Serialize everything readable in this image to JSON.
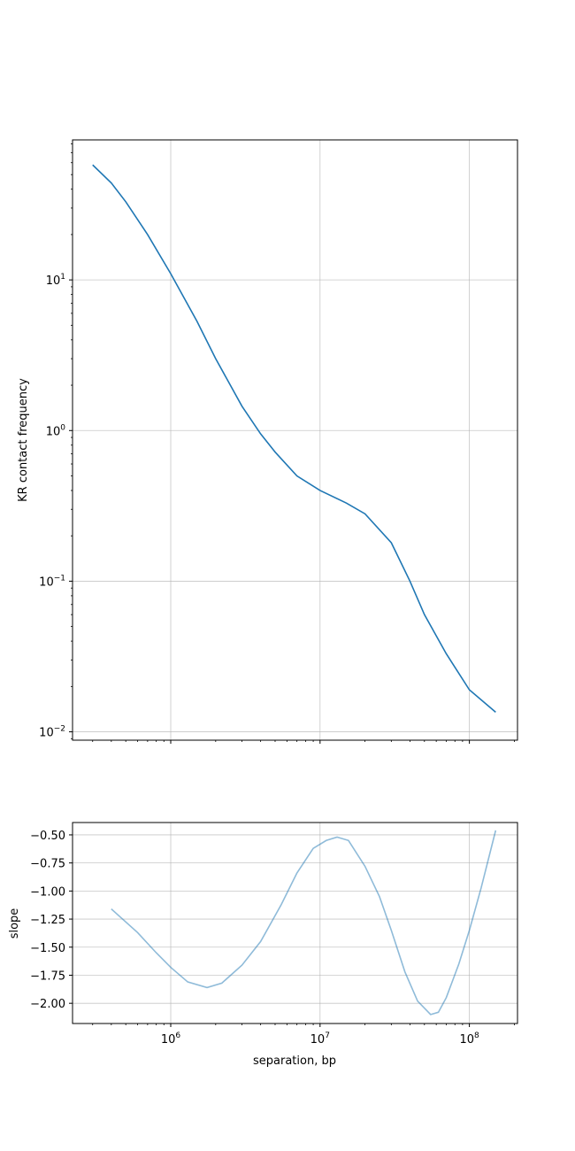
{
  "chart_data": [
    {
      "type": "line",
      "xscale": "log",
      "yscale": "log",
      "xlim": [
        220000,
        210000000
      ],
      "ylim": [
        0.0088,
        85
      ],
      "xlabel": "",
      "ylabel": "KR contact frequency",
      "yticks": [
        {
          "value": 10,
          "mantissa": "10",
          "exp": "1"
        },
        {
          "value": 1,
          "mantissa": "10",
          "exp": "0"
        },
        {
          "value": 0.1,
          "mantissa": "10",
          "exp": "−1"
        },
        {
          "value": 0.01,
          "mantissa": "10",
          "exp": "−2"
        }
      ],
      "xgrid": [
        1000000,
        10000000,
        100000000
      ],
      "grid": true,
      "color": "#1f77b4",
      "series": [
        {
          "x": [
            300000,
            400000,
            500000,
            700000,
            1000000,
            1500000,
            2000000,
            3000000,
            4000000,
            5000000,
            7000000,
            10000000,
            15000000,
            20000000,
            30000000,
            40000000,
            50000000,
            70000000,
            100000000,
            150000000
          ],
          "y": [
            58,
            44,
            33,
            20,
            11,
            5.3,
            3.0,
            1.45,
            0.95,
            0.72,
            0.5,
            0.4,
            0.33,
            0.28,
            0.18,
            0.1,
            0.06,
            0.033,
            0.019,
            0.0135
          ]
        }
      ]
    },
    {
      "type": "line",
      "xscale": "log",
      "yscale": "linear",
      "xlim": [
        220000,
        210000000
      ],
      "ylim": [
        -2.18,
        -0.39
      ],
      "xlabel": "separation, bp",
      "ylabel": "slope",
      "yticks": [
        {
          "value": -0.5,
          "label": "−0.50"
        },
        {
          "value": -0.75,
          "label": "−0.75"
        },
        {
          "value": -1.0,
          "label": "−1.00"
        },
        {
          "value": -1.25,
          "label": "−1.25"
        },
        {
          "value": -1.5,
          "label": "−1.50"
        },
        {
          "value": -1.75,
          "label": "−1.75"
        },
        {
          "value": -2.0,
          "label": "−2.00"
        }
      ],
      "xticks": [
        {
          "value": 1000000,
          "mantissa": "10",
          "exp": "6"
        },
        {
          "value": 10000000,
          "mantissa": "10",
          "exp": "7"
        },
        {
          "value": 100000000,
          "mantissa": "10",
          "exp": "8"
        }
      ],
      "grid": true,
      "color": "#1f77b4",
      "alpha": 0.5,
      "series": [
        {
          "x": [
            400000,
            600000,
            800000,
            1000000,
            1300000,
            1750000,
            2200000,
            3000000,
            4000000,
            5500000,
            7000000,
            9000000,
            11000000,
            13000000,
            15500000,
            20000000,
            25000000,
            30000000,
            37000000,
            45000000,
            55000000,
            62000000,
            70000000,
            85000000,
            100000000,
            120000000,
            150000000
          ],
          "y": [
            -1.16,
            -1.37,
            -1.55,
            -1.68,
            -1.81,
            -1.86,
            -1.82,
            -1.66,
            -1.45,
            -1.12,
            -0.84,
            -0.62,
            -0.55,
            -0.52,
            -0.55,
            -0.78,
            -1.05,
            -1.35,
            -1.72,
            -1.98,
            -2.1,
            -2.08,
            -1.95,
            -1.65,
            -1.35,
            -0.97,
            -0.46
          ]
        }
      ]
    }
  ]
}
